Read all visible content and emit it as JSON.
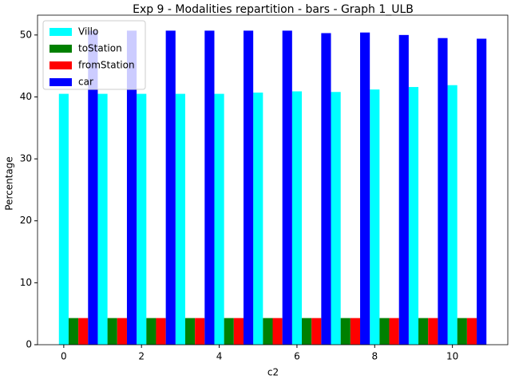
{
  "chart_data": {
    "type": "bar",
    "title": "Exp 9 - Modalities repartition - bars - Graph 1_ULB",
    "x_label": "c2",
    "y_label": "Percentage",
    "x": [
      0,
      1,
      2,
      3,
      4,
      5,
      6,
      7,
      8,
      9,
      10
    ],
    "series": [
      {
        "name": "Villo",
        "color": "#00ffff",
        "values": [
          40.5,
          40.5,
          40.5,
          40.5,
          40.5,
          40.7,
          40.9,
          40.8,
          41.2,
          41.6,
          41.9
        ]
      },
      {
        "name": "toStation",
        "color": "#008000",
        "values": [
          4.3,
          4.3,
          4.3,
          4.3,
          4.3,
          4.3,
          4.3,
          4.3,
          4.3,
          4.3,
          4.3
        ]
      },
      {
        "name": "fromStation",
        "color": "#ff0000",
        "values": [
          4.3,
          4.3,
          4.3,
          4.3,
          4.3,
          4.3,
          4.3,
          4.3,
          4.3,
          4.3,
          4.3
        ]
      },
      {
        "name": "car",
        "color": "#0000ff",
        "values": [
          50.7,
          50.7,
          50.7,
          50.7,
          50.7,
          50.7,
          50.3,
          50.4,
          50.0,
          49.5,
          49.4
        ]
      }
    ],
    "xlim": [
      -0.675,
      11.425
    ],
    "xticks": [
      0,
      2,
      4,
      6,
      8,
      10
    ],
    "ylim": [
      0,
      53.2
    ],
    "yticks": [
      0,
      10,
      20,
      30,
      40,
      50
    ],
    "legend": "upper-left"
  }
}
